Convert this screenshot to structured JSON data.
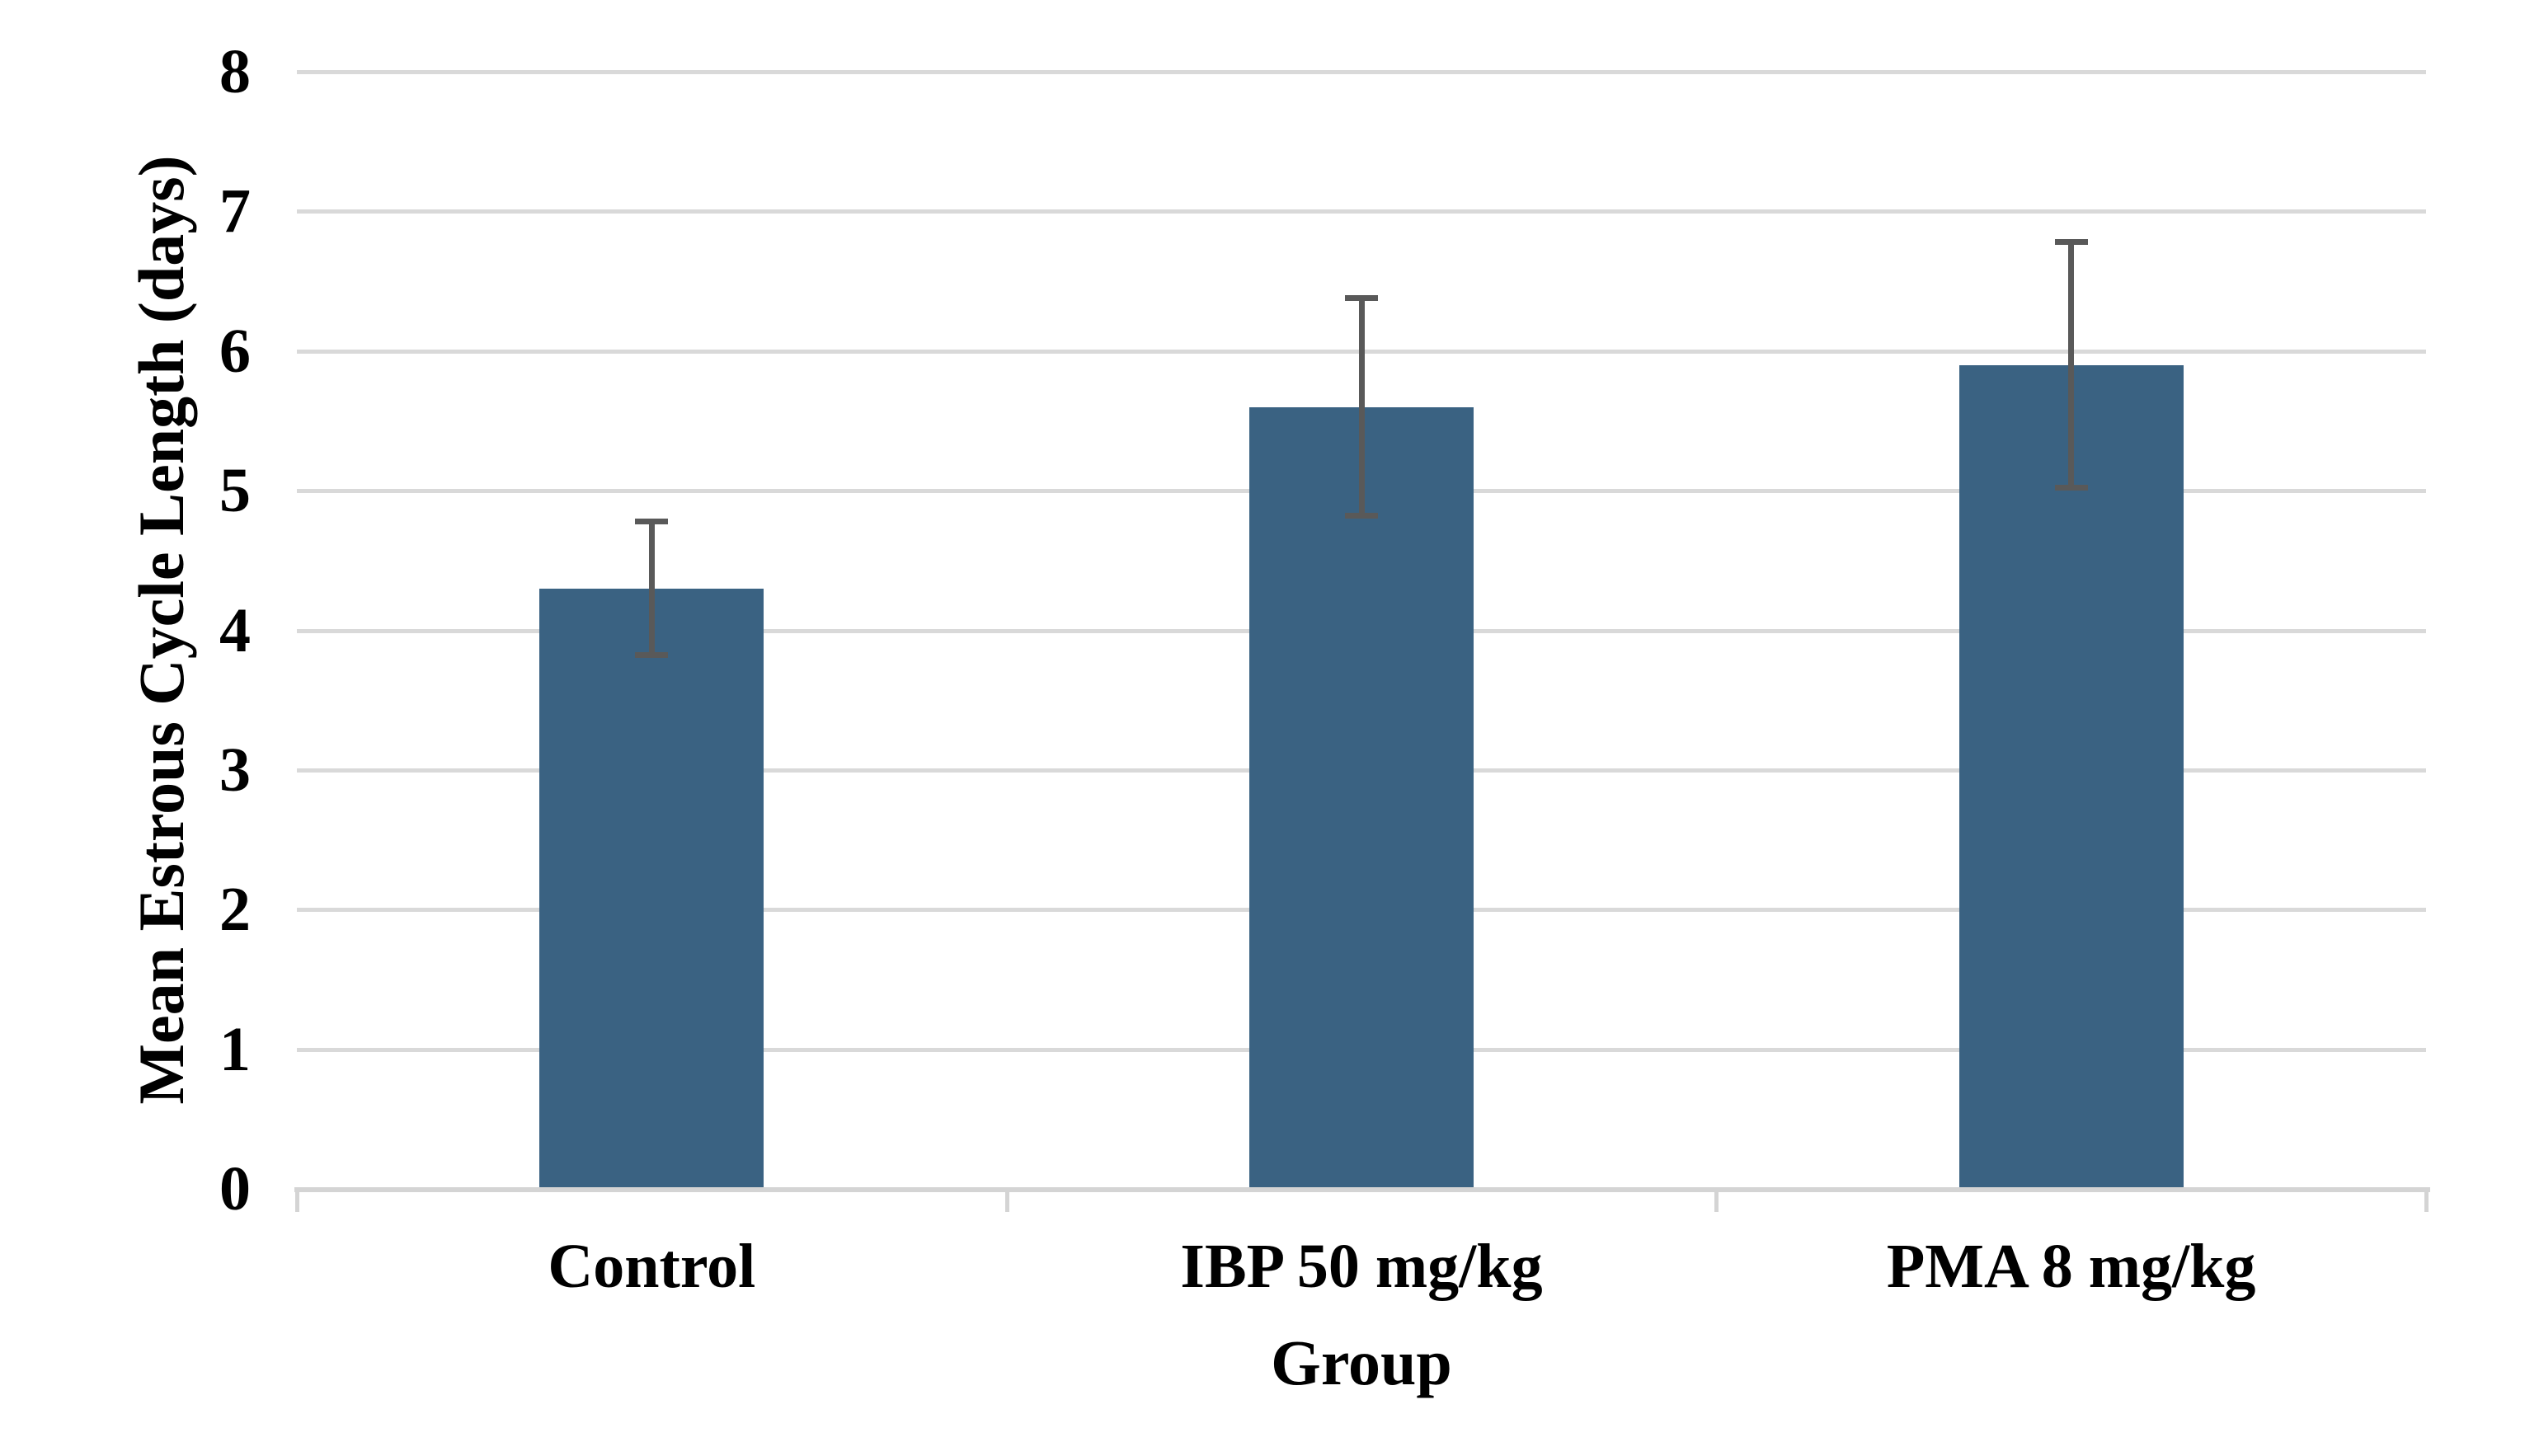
{
  "chart_data": {
    "type": "bar",
    "title": "",
    "categories": [
      "Control",
      "IBP 50 mg/kg",
      "PMA 8 mg/kg"
    ],
    "values": [
      4.3,
      5.6,
      5.9
    ],
    "error_low": [
      3.8,
      4.8,
      5.0
    ],
    "error_high": [
      4.8,
      6.4,
      6.8
    ],
    "xlabel": "Group",
    "ylabel": "Mean Estrous Cycle Length (days)",
    "ylim": [
      0,
      8
    ],
    "yticks": [
      0,
      1,
      2,
      3,
      4,
      5,
      6,
      7,
      8
    ],
    "grid": "horizontal",
    "legend": "none",
    "colors": {
      "bar": "#3A6282",
      "gridline": "#D9D9D9",
      "axis_line": "#D4D4D4",
      "error_bar": "#595959",
      "text": "#000000",
      "background": "#FFFFFF"
    }
  }
}
